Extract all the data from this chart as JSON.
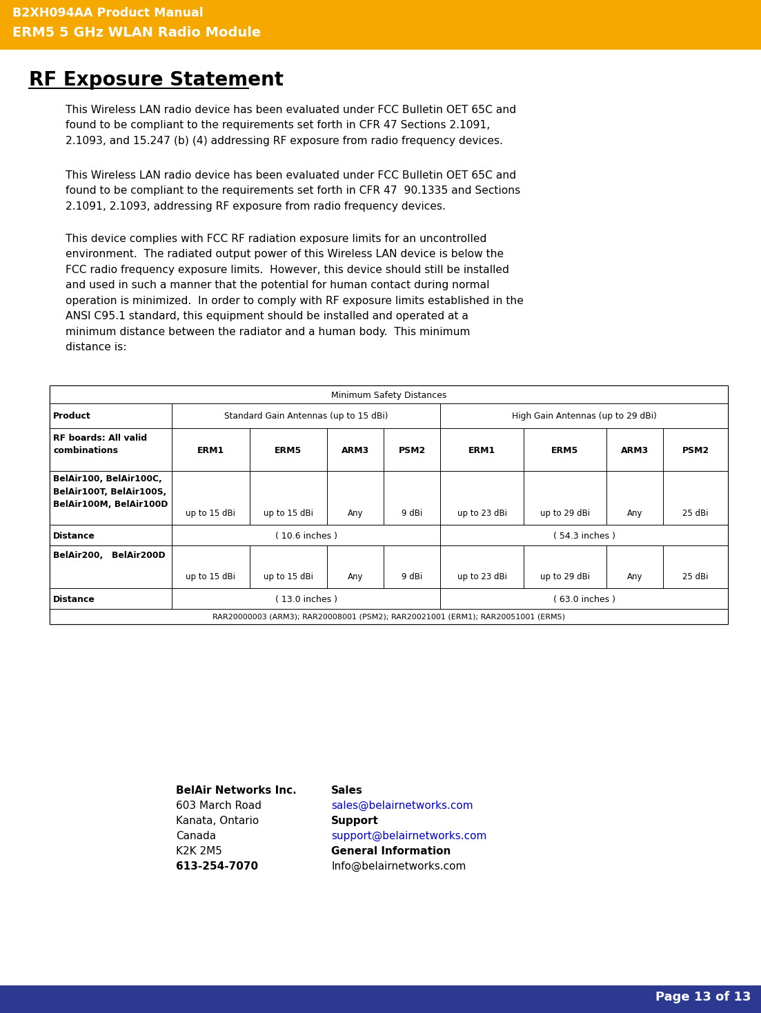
{
  "header_bg": "#F5A800",
  "header_text_color": "#FFFFFF",
  "footer_bg": "#2B3990",
  "footer_text_color": "#FFFFFF",
  "body_bg": "#FFFFFF",
  "header_line1": "B2XH094AA Product Manual",
  "header_line2": "ERM5 5 GHz WLAN Radio Module",
  "footer_text": "Page 13 of 13",
  "section_title": "RF Exposure Statement",
  "para1": "This Wireless LAN radio device has been evaluated under FCC Bulletin OET 65C and\nfound to be compliant to the requirements set forth in CFR 47 Sections 2.1091,\n2.1093, and 15.247 (b) (4) addressing RF exposure from radio frequency devices.",
  "para2": "This Wireless LAN radio device has been evaluated under FCC Bulletin OET 65C and\nfound to be compliant to the requirements set forth in CFR 47  90.1335 and Sections\n2.1091, 2.1093, addressing RF exposure from radio frequency devices.",
  "para3": "This device complies with FCC RF radiation exposure limits for an uncontrolled\nenvironment.  The radiated output power of this Wireless LAN device is below the\nFCC radio frequency exposure limits.  However, this device should still be installed\nand used in such a manner that the potential for human contact during normal\noperation is minimized.  In order to comply with RF exposure limits established in the\nANSI C95.1 standard, this equipment should be installed and operated at a\nminimum distance between the radiator and a human body.  This minimum\ndistance is:",
  "contact_col1": [
    "BelAir Networks Inc.",
    "603 March Road",
    "Kanata, Ontario",
    "Canada",
    "K2K 2M5",
    "613-254-7070"
  ],
  "contact_col1_bold": [
    true,
    false,
    false,
    false,
    false,
    true
  ],
  "contact_col2_labels": [
    "Sales",
    "Support",
    "General Information"
  ],
  "contact_col2_links": [
    "sales@belairnetworks.com",
    "support@belairnetworks.com",
    "Info@belairnetworks.com"
  ],
  "table_title": "Minimum Safety Distances",
  "sub_headers": [
    "ERM1",
    "ERM5",
    "ARM3",
    "PSM2",
    "ERM1",
    "ERM5",
    "ARM3",
    "PSM2"
  ],
  "belair100_label": "BelAir100, BelAir100C,\nBelAir100T, BelAir100S,\nBelAir100M, BelAir100D",
  "belair100_data": [
    "up to 15 dBi",
    "up to 15 dBi",
    "Any",
    "9 dBi",
    "up to 23 dBi",
    "up to 29 dBi",
    "Any",
    "25 dBi"
  ],
  "dist1_std": "( 10.6 inches )",
  "dist1_high": "( 54.3 inches )",
  "belair200_label": "BelAir200,   BelAir200D",
  "belair200_data": [
    "up to 15 dBi",
    "up to 15 dBi",
    "Any",
    "9 dBi",
    "up to 23 dBi",
    "up to 29 dBi",
    "Any",
    "25 dBi"
  ],
  "dist2_std": "( 13.0 inches )",
  "dist2_high": "( 63.0 inches )",
  "table_footer": "RAR20000003 (ARM3); RAR20008001 (PSM2); RAR20021001 (ERM1); RAR20051001 (ERM5)"
}
